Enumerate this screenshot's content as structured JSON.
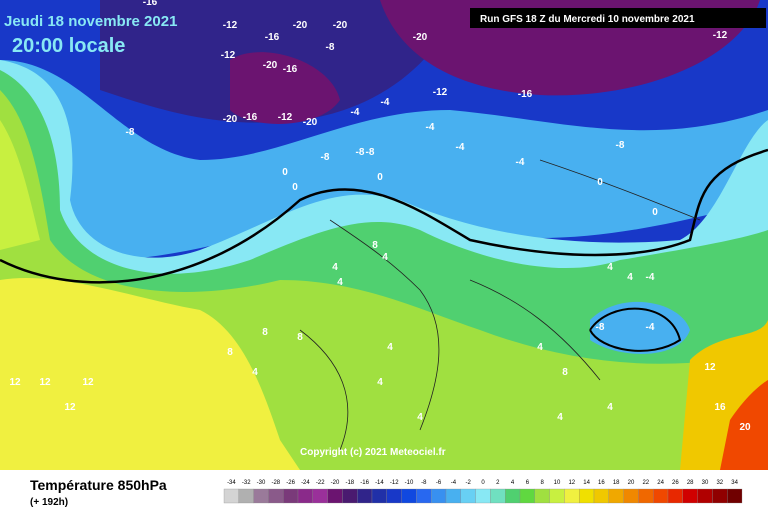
{
  "header": {
    "date": "Jeudi 18 novembre 2021",
    "time": "20:00 locale",
    "run": "Run GFS 18 Z du Mercredi 10 novembre 2021"
  },
  "footer": {
    "title": "Température 850hPa",
    "lead": "(+ 192h)",
    "copyright": "Copyright (c) 2021 Meteociel.fr"
  },
  "legend": {
    "values": [
      -34,
      -32,
      -30,
      -28,
      -26,
      -24,
      -22,
      -20,
      -18,
      -16,
      -14,
      -12,
      -10,
      -8,
      -6,
      -4,
      -2,
      0,
      2,
      4,
      6,
      8,
      10,
      12,
      14,
      16,
      18,
      20,
      22,
      24,
      26,
      28,
      30,
      32,
      34
    ],
    "colors": [
      "#d4d4d4",
      "#b0b0b0",
      "#9a7a9a",
      "#8a5a8a",
      "#7a3a7a",
      "#8a2a8a",
      "#9a309a",
      "#6b1470",
      "#4a1a70",
      "#30248a",
      "#2030a8",
      "#1838c8",
      "#1048e0",
      "#2868f0",
      "#3890f0",
      "#48b0f0",
      "#68d0f4",
      "#88e8f4",
      "#70e0c0",
      "#50d070",
      "#60d840",
      "#a0e040",
      "#c8f040",
      "#f0f040",
      "#f0e000",
      "#f0c800",
      "#f0a800",
      "#f08800",
      "#f06800",
      "#f04800",
      "#e82800",
      "#d00000",
      "#b00000",
      "#900000",
      "#700000"
    ]
  },
  "map_labels": [
    "-16",
    "-12",
    "-20",
    "-20",
    "-16",
    "-12",
    "-8",
    "-20",
    "-16",
    "-20",
    "-16",
    "-12",
    "-20",
    "-20",
    "-8",
    "-4",
    "-8",
    "-12",
    "-16",
    "-8",
    "-8",
    "-4",
    "-4",
    "-4",
    "0",
    "0",
    "0",
    "0",
    "-4",
    "4",
    "8",
    "4",
    "4",
    "8",
    "4",
    "8",
    "8",
    "4",
    "4",
    "4",
    "4",
    "4",
    "4",
    "12",
    "12",
    "12",
    "12",
    "16",
    "20",
    "12",
    "-12",
    "-8",
    "-4",
    "-4",
    "-8",
    "0",
    "4",
    "4",
    "8"
  ]
}
